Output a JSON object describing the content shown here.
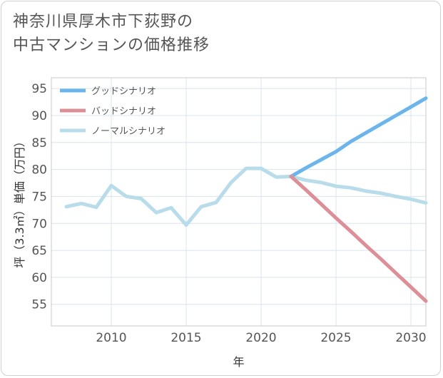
{
  "title_line1": "神奈川県厚木市下荻野の",
  "title_line2": "中古マンションの価格推移",
  "chart_data": {
    "type": "line",
    "xlabel": "年",
    "ylabel": "坪（3.3㎡）単価（万円）",
    "xlim": [
      2006,
      2031
    ],
    "ylim": [
      51,
      97
    ],
    "xticks": [
      2010,
      2015,
      2020,
      2025,
      2030
    ],
    "yticks": [
      55,
      60,
      65,
      70,
      75,
      80,
      85,
      90,
      95
    ],
    "grid": true,
    "legend_position": "top-left",
    "series": [
      {
        "name": "グッドシナリオ",
        "color": "#6cb5ec",
        "x": [
          2022,
          2023,
          2024,
          2025,
          2026,
          2027,
          2028,
          2029,
          2030,
          2031
        ],
        "values": [
          78.7,
          80.3,
          81.8,
          83.3,
          85.2,
          86.8,
          88.4,
          90.0,
          91.6,
          93.2
        ]
      },
      {
        "name": "バッドシナリオ",
        "color": "#dd8f97",
        "x": [
          2022,
          2023,
          2024,
          2025,
          2026,
          2027,
          2028,
          2029,
          2030,
          2031
        ],
        "values": [
          78.7,
          76.2,
          73.6,
          71.0,
          68.5,
          65.9,
          63.4,
          60.8,
          58.2,
          55.6
        ]
      },
      {
        "name": "ノーマルシナリオ",
        "color": "#b8dcea",
        "x": [
          2007,
          2008,
          2009,
          2010,
          2011,
          2012,
          2013,
          2014,
          2015,
          2016,
          2017,
          2018,
          2019,
          2020,
          2021,
          2022,
          2023,
          2024,
          2025,
          2026,
          2027,
          2028,
          2029,
          2030,
          2031
        ],
        "values": [
          73.1,
          73.7,
          73.0,
          77.0,
          75.0,
          74.6,
          72.0,
          72.9,
          69.7,
          73.1,
          73.9,
          77.6,
          80.2,
          80.2,
          78.6,
          78.7,
          78.0,
          77.6,
          76.9,
          76.6,
          76.0,
          75.6,
          75.0,
          74.5,
          73.8
        ]
      }
    ]
  }
}
